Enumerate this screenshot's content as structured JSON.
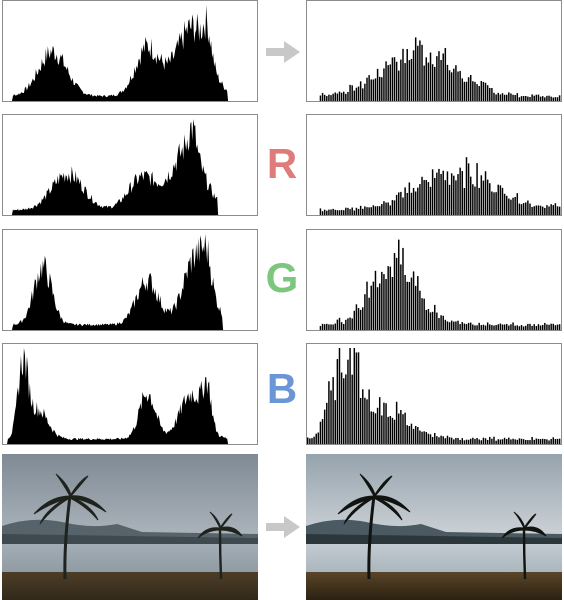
{
  "rows": [
    {
      "id": "luminance",
      "label": "",
      "label_color": ""
    },
    {
      "id": "red",
      "label": "R",
      "label_color": "#e07b7b"
    },
    {
      "id": "green",
      "label": "G",
      "label_color": "#7dc67d"
    },
    {
      "id": "blue",
      "label": "B",
      "label_color": "#6b96d6"
    }
  ],
  "colors": {
    "histogram_fill": "#000000",
    "panel_border": "#8c8c8c",
    "arrow": "#c8c8c8"
  },
  "icons": {
    "transform_arrow": "right-arrow-icon"
  },
  "photos": {
    "before": "palm-trees-lakeside-original",
    "after": "palm-trees-lakeside-equalized"
  }
}
